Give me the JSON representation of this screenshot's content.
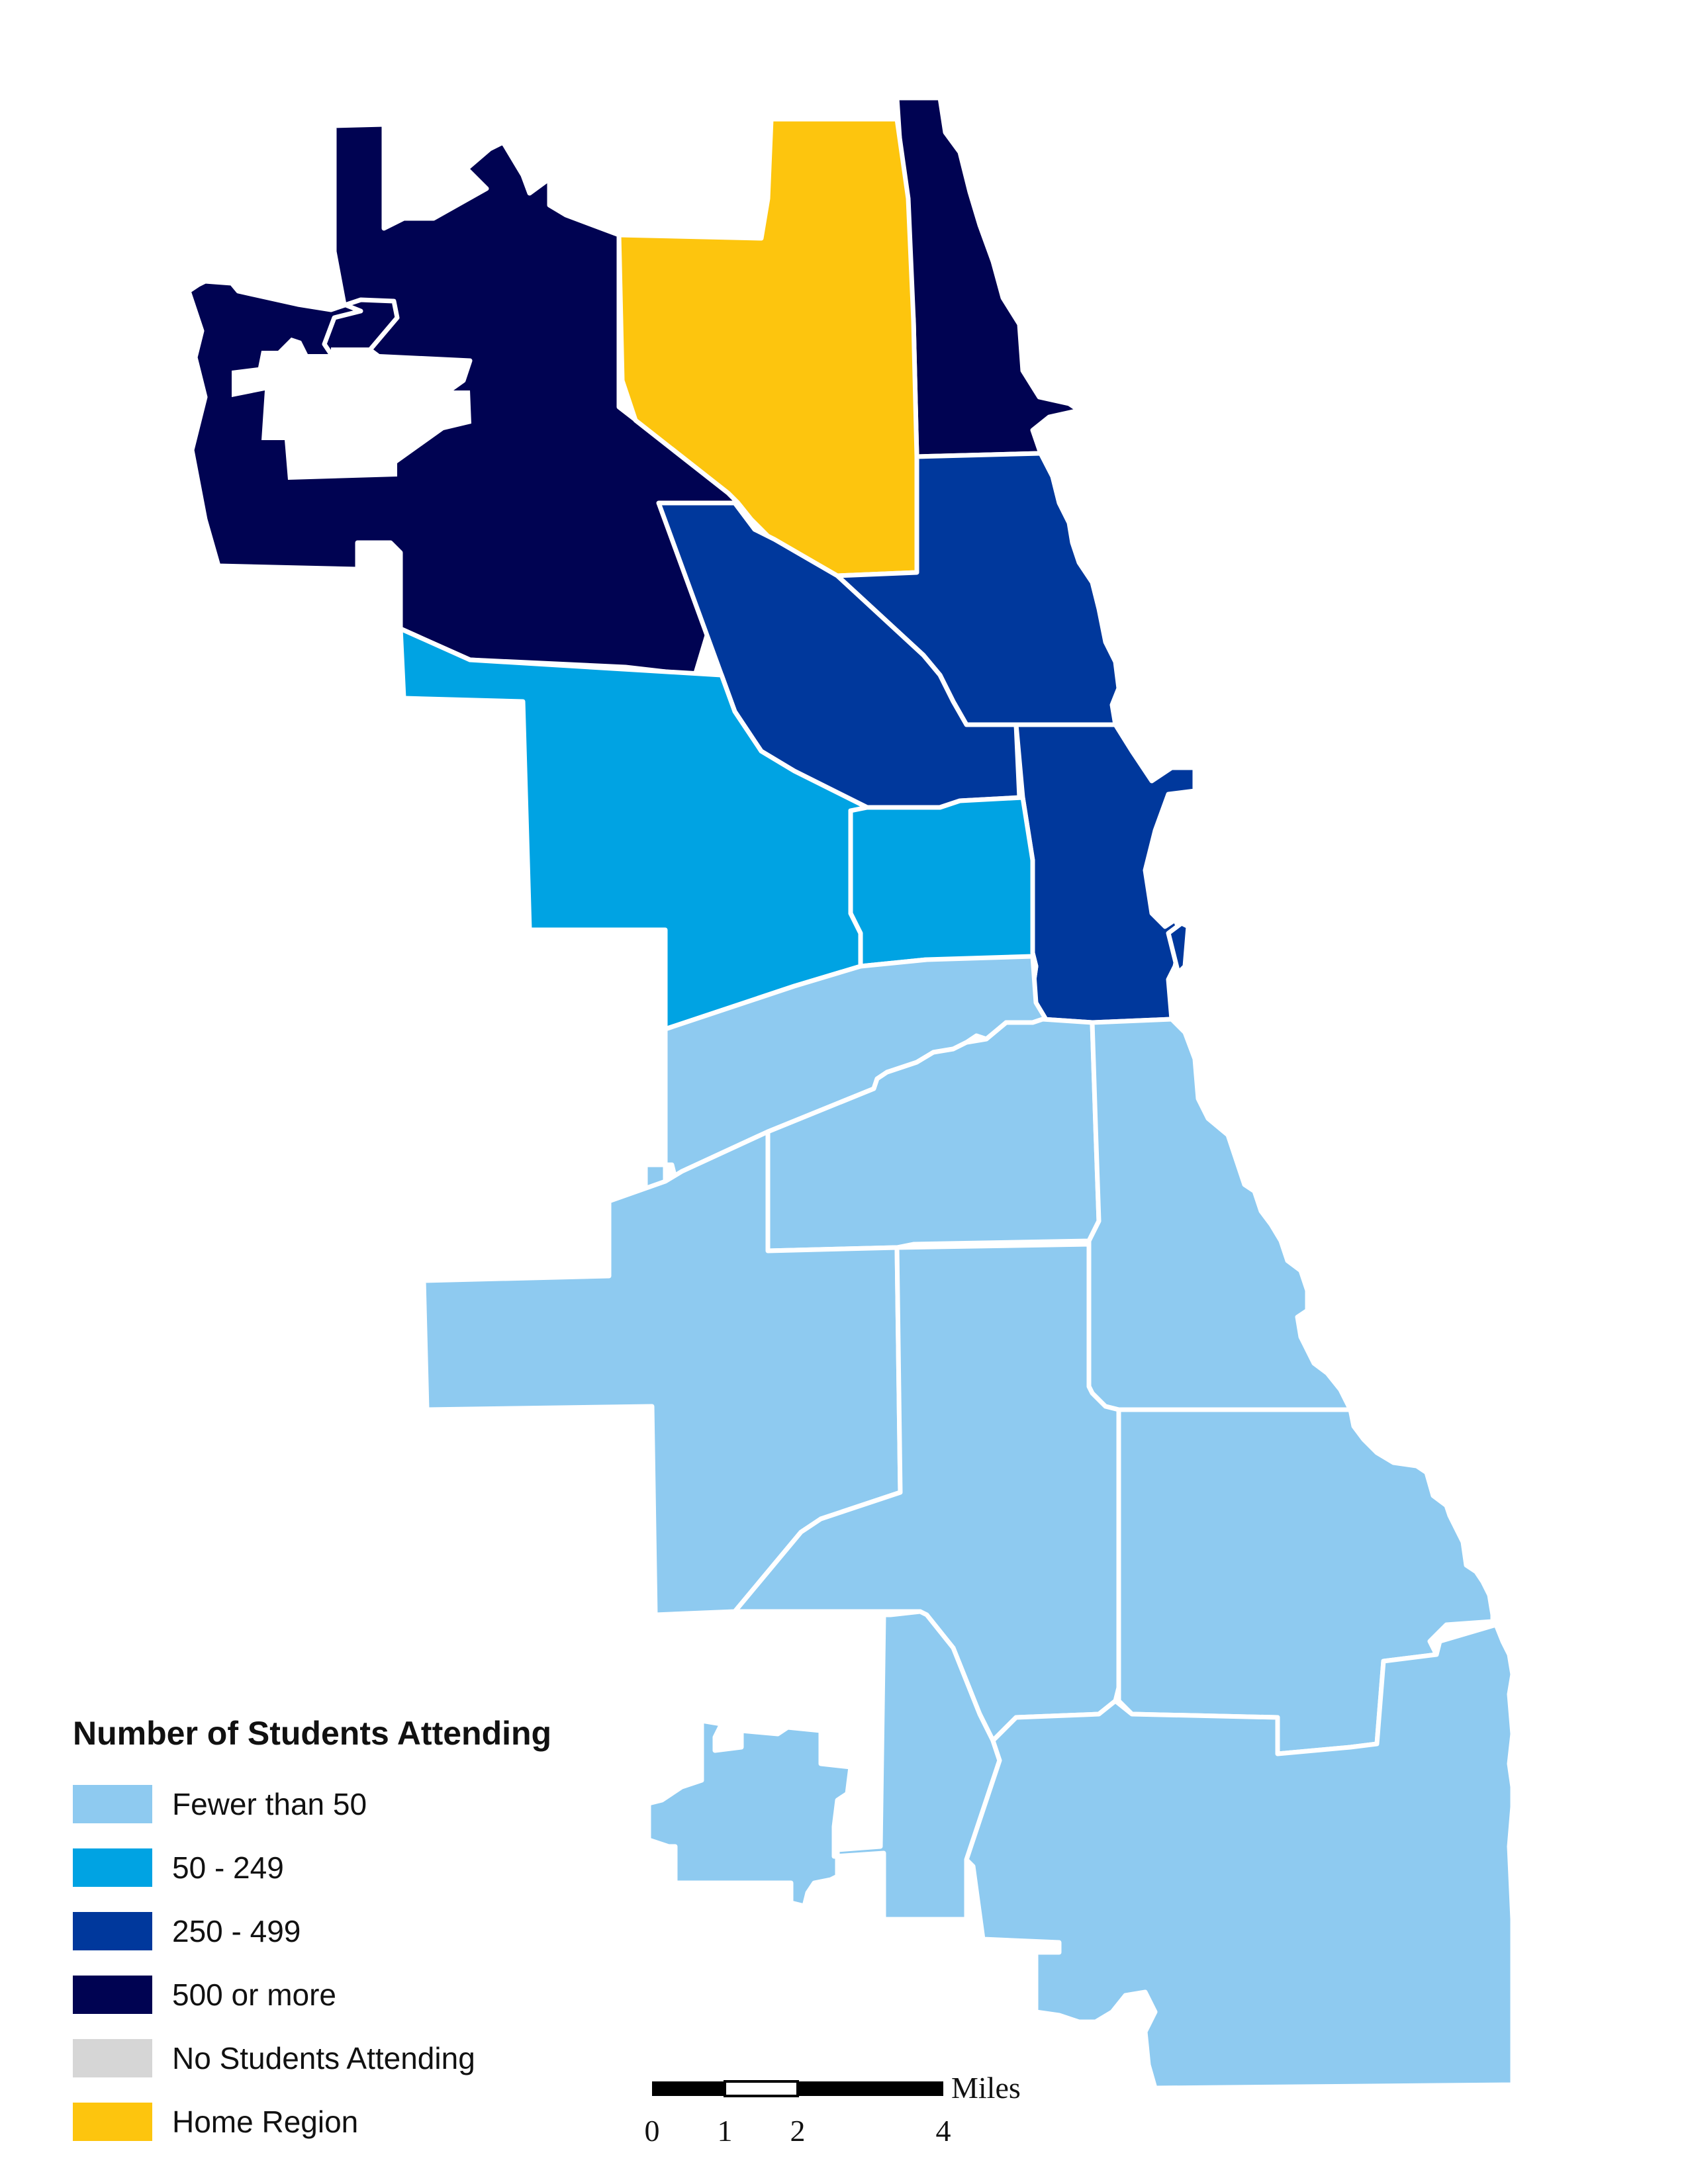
{
  "legend": {
    "title": "Number of Students Attending",
    "items": [
      {
        "label": "Fewer than 50",
        "color": "#8ecaf0"
      },
      {
        "label": "50 - 249",
        "color": "#00a3e3"
      },
      {
        "label": "250 - 499",
        "color": "#00389c"
      },
      {
        "label": "500 or more",
        "color": "#000352"
      },
      {
        "label": "No Students Attending",
        "color": "#d6d6d6"
      },
      {
        "label": "Home Region",
        "color": "#fdc50e"
      }
    ]
  },
  "scale_bar": {
    "unit": "Miles",
    "ticks": [
      "0",
      "1",
      "2",
      "4"
    ]
  },
  "regions": [
    {
      "name": "northwest",
      "category": "500 or more"
    },
    {
      "name": "far-north-lakefront",
      "category": "500 or more"
    },
    {
      "name": "north-central",
      "category": "Home Region"
    },
    {
      "name": "north-lakefront",
      "category": "250 - 499"
    },
    {
      "name": "central-north",
      "category": "250 - 499"
    },
    {
      "name": "central-lakefront",
      "category": "250 - 499"
    },
    {
      "name": "west",
      "category": "50 - 249"
    },
    {
      "name": "near-west",
      "category": "50 - 249"
    },
    {
      "name": "southwest-upper",
      "category": "Fewer than 50"
    },
    {
      "name": "south-central-upper",
      "category": "Fewer than 50"
    },
    {
      "name": "south-lakefront-upper",
      "category": "Fewer than 50"
    },
    {
      "name": "southwest",
      "category": "Fewer than 50"
    },
    {
      "name": "south-central",
      "category": "Fewer than 50"
    },
    {
      "name": "south-lakefront",
      "category": "Fewer than 50"
    },
    {
      "name": "far-southwest",
      "category": "Fewer than 50"
    },
    {
      "name": "far-south",
      "category": "Fewer than 50"
    }
  ]
}
